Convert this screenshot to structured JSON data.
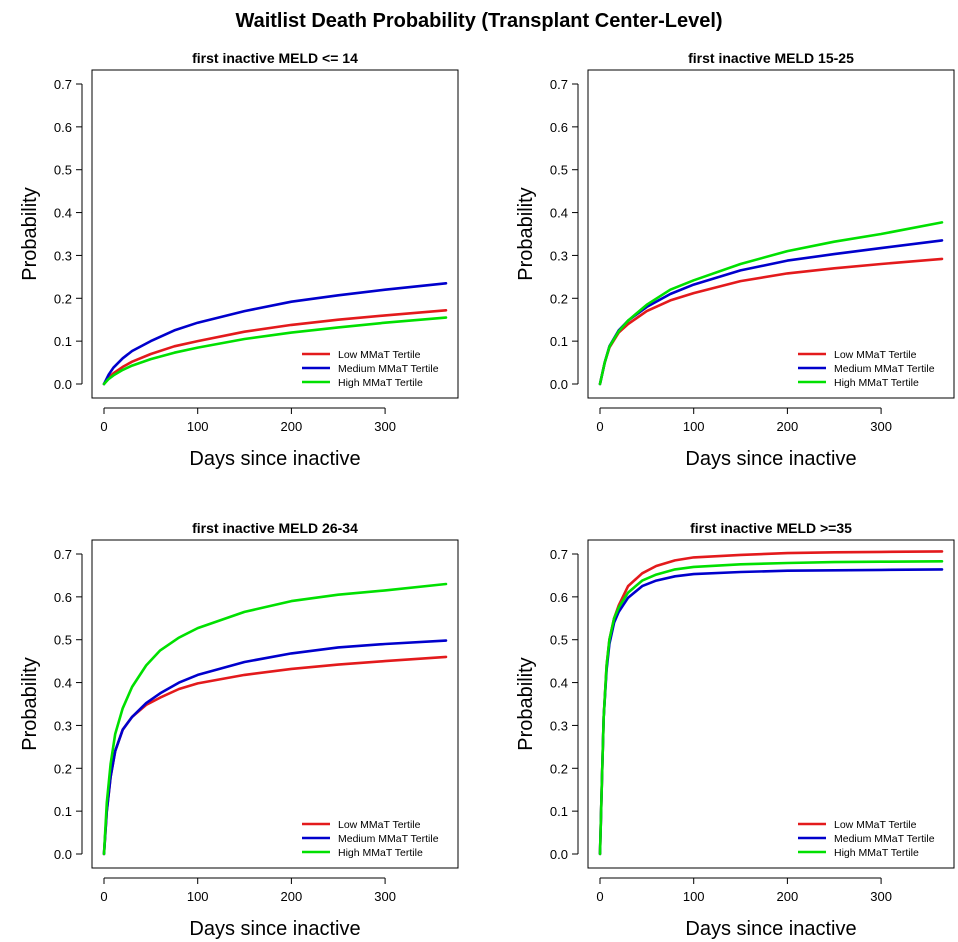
{
  "figure": {
    "title": "Waitlist Death Probability (Transplant Center-Level)"
  },
  "chart_data": [
    {
      "type": "line",
      "title": "first inactive MELD <= 14",
      "xlabel": "Days since inactive",
      "ylabel": "Probability",
      "xlim": [
        0,
        365
      ],
      "ylim": [
        0,
        0.7
      ],
      "xticks": [
        0,
        100,
        200,
        300
      ],
      "yticks": [
        0.0,
        0.1,
        0.2,
        0.3,
        0.4,
        0.5,
        0.6,
        0.7
      ],
      "ytick_labels": [
        "0.0",
        "0.1",
        "0.2",
        "0.3",
        "0.4",
        "0.5",
        "0.6",
        "0.7"
      ],
      "grid": false,
      "legend": "bottom-right",
      "series": [
        {
          "name": "Low MMaT Tertile",
          "color": "#e31a1c",
          "x": [
            0,
            5,
            10,
            20,
            30,
            50,
            75,
            100,
            150,
            200,
            250,
            300,
            365
          ],
          "y": [
            0.0,
            0.015,
            0.025,
            0.04,
            0.052,
            0.07,
            0.088,
            0.1,
            0.122,
            0.138,
            0.15,
            0.16,
            0.172
          ]
        },
        {
          "name": "Medium MMaT Tertile",
          "color": "#0000cc",
          "x": [
            0,
            5,
            10,
            20,
            30,
            50,
            75,
            100,
            150,
            200,
            250,
            300,
            365
          ],
          "y": [
            0.0,
            0.022,
            0.038,
            0.06,
            0.077,
            0.1,
            0.125,
            0.143,
            0.17,
            0.192,
            0.207,
            0.22,
            0.235
          ]
        },
        {
          "name": "High MMaT Tertile",
          "color": "#00e000",
          "x": [
            0,
            5,
            10,
            20,
            30,
            50,
            75,
            100,
            150,
            200,
            250,
            300,
            365
          ],
          "y": [
            0.0,
            0.012,
            0.02,
            0.033,
            0.043,
            0.058,
            0.073,
            0.085,
            0.105,
            0.12,
            0.132,
            0.143,
            0.155
          ]
        }
      ]
    },
    {
      "type": "line",
      "title": "first inactive MELD 15-25",
      "xlabel": "Days since inactive",
      "ylabel": "Probability",
      "xlim": [
        0,
        365
      ],
      "ylim": [
        0,
        0.7
      ],
      "xticks": [
        0,
        100,
        200,
        300
      ],
      "yticks": [
        0.0,
        0.1,
        0.2,
        0.3,
        0.4,
        0.5,
        0.6,
        0.7
      ],
      "ytick_labels": [
        "0.0",
        "0.1",
        "0.2",
        "0.3",
        "0.4",
        "0.5",
        "0.6",
        "0.7"
      ],
      "grid": false,
      "legend": "bottom-right",
      "series": [
        {
          "name": "Low MMaT Tertile",
          "color": "#e31a1c",
          "x": [
            0,
            5,
            10,
            20,
            30,
            50,
            75,
            100,
            150,
            200,
            250,
            300,
            365
          ],
          "y": [
            0.0,
            0.05,
            0.085,
            0.12,
            0.14,
            0.17,
            0.195,
            0.212,
            0.24,
            0.258,
            0.27,
            0.28,
            0.292
          ]
        },
        {
          "name": "Medium MMaT Tertile",
          "color": "#0000cc",
          "x": [
            0,
            5,
            10,
            20,
            30,
            50,
            75,
            100,
            150,
            200,
            250,
            300,
            365
          ],
          "y": [
            0.0,
            0.05,
            0.088,
            0.125,
            0.148,
            0.18,
            0.21,
            0.232,
            0.265,
            0.288,
            0.303,
            0.317,
            0.335
          ]
        },
        {
          "name": "High MMaT Tertile",
          "color": "#00e000",
          "x": [
            0,
            5,
            10,
            20,
            30,
            50,
            75,
            100,
            150,
            200,
            250,
            300,
            365
          ],
          "y": [
            0.0,
            0.05,
            0.087,
            0.123,
            0.148,
            0.185,
            0.22,
            0.242,
            0.28,
            0.31,
            0.332,
            0.35,
            0.377
          ]
        }
      ]
    },
    {
      "type": "line",
      "title": "first inactive MELD 26-34",
      "xlabel": "Days since inactive",
      "ylabel": "Probability",
      "xlim": [
        0,
        365
      ],
      "ylim": [
        0,
        0.7
      ],
      "xticks": [
        0,
        100,
        200,
        300
      ],
      "yticks": [
        0.0,
        0.1,
        0.2,
        0.3,
        0.4,
        0.5,
        0.6,
        0.7
      ],
      "ytick_labels": [
        "0.0",
        "0.1",
        "0.2",
        "0.3",
        "0.4",
        "0.5",
        "0.6",
        "0.7"
      ],
      "grid": false,
      "legend": "bottom-right",
      "series": [
        {
          "name": "Low MMaT Tertile",
          "color": "#e31a1c",
          "x": [
            0,
            3,
            7,
            12,
            20,
            30,
            45,
            60,
            80,
            100,
            150,
            200,
            250,
            300,
            365
          ],
          "y": [
            0.0,
            0.1,
            0.18,
            0.24,
            0.29,
            0.32,
            0.348,
            0.365,
            0.385,
            0.398,
            0.418,
            0.432,
            0.442,
            0.45,
            0.46
          ]
        },
        {
          "name": "Medium MMaT Tertile",
          "color": "#0000cc",
          "x": [
            0,
            3,
            7,
            12,
            20,
            30,
            45,
            60,
            80,
            100,
            150,
            200,
            250,
            300,
            365
          ],
          "y": [
            0.0,
            0.1,
            0.18,
            0.24,
            0.29,
            0.32,
            0.352,
            0.375,
            0.4,
            0.418,
            0.448,
            0.468,
            0.482,
            0.49,
            0.498
          ]
        },
        {
          "name": "High MMaT Tertile",
          "color": "#00e000",
          "x": [
            0,
            3,
            7,
            12,
            20,
            30,
            45,
            60,
            80,
            100,
            150,
            200,
            250,
            300,
            365
          ],
          "y": [
            0.0,
            0.12,
            0.21,
            0.28,
            0.34,
            0.39,
            0.44,
            0.475,
            0.505,
            0.527,
            0.565,
            0.59,
            0.605,
            0.615,
            0.63
          ]
        }
      ]
    },
    {
      "type": "line",
      "title": "first inactive MELD >=35",
      "xlabel": "Days since inactive",
      "ylabel": "Probability",
      "xlim": [
        0,
        365
      ],
      "ylim": [
        0,
        0.7
      ],
      "xticks": [
        0,
        100,
        200,
        300
      ],
      "yticks": [
        0.0,
        0.1,
        0.2,
        0.3,
        0.4,
        0.5,
        0.6,
        0.7
      ],
      "ytick_labels": [
        "0.0",
        "0.1",
        "0.2",
        "0.3",
        "0.4",
        "0.5",
        "0.6",
        "0.7"
      ],
      "grid": false,
      "legend": "bottom-right",
      "series": [
        {
          "name": "Low MMaT Tertile",
          "color": "#e31a1c",
          "x": [
            0,
            2,
            4,
            7,
            10,
            15,
            20,
            30,
            45,
            60,
            80,
            100,
            150,
            200,
            250,
            300,
            365
          ],
          "y": [
            0.0,
            0.17,
            0.32,
            0.44,
            0.5,
            0.55,
            0.58,
            0.625,
            0.655,
            0.672,
            0.685,
            0.692,
            0.698,
            0.702,
            0.704,
            0.705,
            0.706
          ]
        },
        {
          "name": "Medium MMaT Tertile",
          "color": "#0000cc",
          "x": [
            0,
            2,
            4,
            7,
            10,
            15,
            20,
            30,
            45,
            60,
            80,
            100,
            150,
            200,
            250,
            300,
            365
          ],
          "y": [
            0.0,
            0.17,
            0.32,
            0.43,
            0.49,
            0.54,
            0.565,
            0.598,
            0.625,
            0.638,
            0.648,
            0.653,
            0.658,
            0.661,
            0.662,
            0.663,
            0.664
          ]
        },
        {
          "name": "High MMaT Tertile",
          "color": "#00e000",
          "x": [
            0,
            2,
            4,
            7,
            10,
            15,
            20,
            30,
            45,
            60,
            80,
            100,
            150,
            200,
            250,
            300,
            365
          ],
          "y": [
            0.0,
            0.17,
            0.32,
            0.44,
            0.5,
            0.55,
            0.575,
            0.61,
            0.638,
            0.652,
            0.664,
            0.67,
            0.676,
            0.679,
            0.681,
            0.682,
            0.683
          ]
        }
      ]
    }
  ]
}
